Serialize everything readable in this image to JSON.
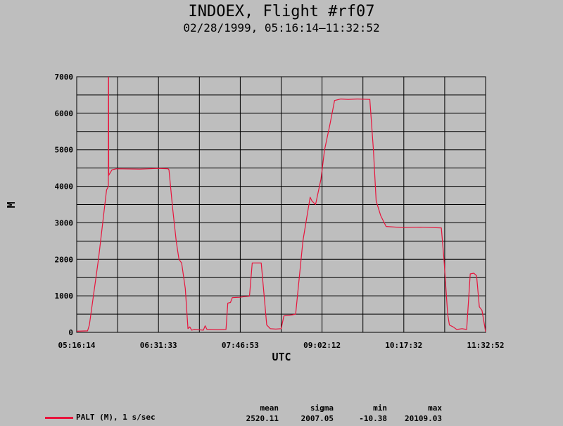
{
  "chart_data": {
    "type": "line",
    "title": "INDOEX, Flight #rf07",
    "subtitle": "02/28/1999, 05:16:14–11:32:52",
    "xlabel": "UTC",
    "ylabel": "M",
    "x_ticks": [
      "05:16:14",
      "06:31:33",
      "07:46:53",
      "09:02:12",
      "10:17:32",
      "11:32:52"
    ],
    "y_ticks": [
      0,
      1000,
      2000,
      3000,
      4000,
      5000,
      6000,
      7000
    ],
    "ylim": [
      0,
      7000
    ],
    "x_range_seconds": [
      0,
      22598
    ],
    "grid": true,
    "legend_position": "bottom-left",
    "series": [
      {
        "name": "PALT (M), 1 s/sec",
        "color": "#e8143c",
        "points": [
          [
            0,
            30
          ],
          [
            600,
            40
          ],
          [
            700,
            200
          ],
          [
            1200,
            2000
          ],
          [
            1650,
            3900
          ],
          [
            1750,
            4000
          ],
          [
            1755,
            6990
          ],
          [
            1760,
            6990
          ],
          [
            1770,
            4300
          ],
          [
            1950,
            4450
          ],
          [
            2200,
            4480
          ],
          [
            3500,
            4470
          ],
          [
            4500,
            4490
          ],
          [
            5050,
            4480
          ],
          [
            5100,
            4450
          ],
          [
            5300,
            3400
          ],
          [
            5500,
            2500
          ],
          [
            5650,
            2000
          ],
          [
            5800,
            1900
          ],
          [
            6000,
            1200
          ],
          [
            6150,
            100
          ],
          [
            6250,
            150
          ],
          [
            6350,
            60
          ],
          [
            6500,
            80
          ],
          [
            7000,
            60
          ],
          [
            7100,
            180
          ],
          [
            7200,
            80
          ],
          [
            7800,
            70
          ],
          [
            8250,
            80
          ],
          [
            8350,
            800
          ],
          [
            8500,
            820
          ],
          [
            8600,
            950
          ],
          [
            9000,
            960
          ],
          [
            9300,
            980
          ],
          [
            9550,
            990
          ],
          [
            9700,
            1900
          ],
          [
            10200,
            1900
          ],
          [
            10500,
            200
          ],
          [
            10700,
            100
          ],
          [
            11000,
            90
          ],
          [
            11300,
            100
          ],
          [
            11450,
            450
          ],
          [
            11900,
            480
          ],
          [
            12100,
            500
          ],
          [
            12500,
            2500
          ],
          [
            12750,
            3250
          ],
          [
            12900,
            3700
          ],
          [
            13000,
            3600
          ],
          [
            13200,
            3500
          ],
          [
            13500,
            4200
          ],
          [
            13700,
            5000
          ],
          [
            14000,
            5700
          ],
          [
            14250,
            6350
          ],
          [
            14600,
            6390
          ],
          [
            15000,
            6380
          ],
          [
            15500,
            6390
          ],
          [
            16200,
            6380
          ],
          [
            16400,
            5000
          ],
          [
            16550,
            3600
          ],
          [
            16800,
            3200
          ],
          [
            17100,
            2900
          ],
          [
            18000,
            2870
          ],
          [
            19000,
            2880
          ],
          [
            20150,
            2860
          ],
          [
            20300,
            2000
          ],
          [
            20500,
            500
          ],
          [
            20600,
            200
          ],
          [
            20800,
            150
          ],
          [
            21000,
            80
          ],
          [
            21300,
            100
          ],
          [
            21550,
            80
          ],
          [
            21750,
            1600
          ],
          [
            21950,
            1620
          ],
          [
            22100,
            1550
          ],
          [
            22250,
            700
          ],
          [
            22400,
            600
          ],
          [
            22598,
            20
          ]
        ],
        "stats": {
          "mean": "2520.11",
          "sigma": "2007.05",
          "min": "-10.38",
          "max": "20109.03"
        }
      }
    ]
  },
  "stats_headers": {
    "mean": "mean",
    "sigma": "sigma",
    "min": "min",
    "max": "max"
  }
}
